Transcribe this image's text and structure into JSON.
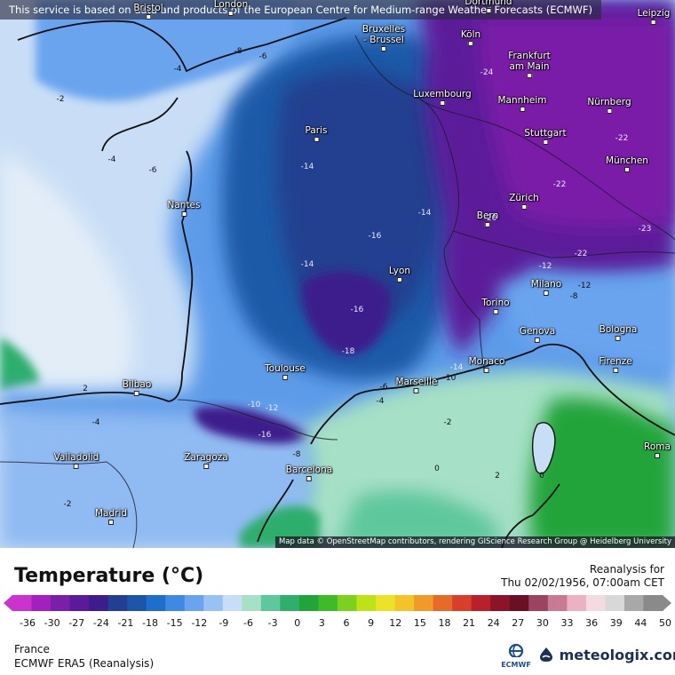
{
  "notice": "This service is based on data and products of the European Centre for Medium-range Weather Forecasts (ECMWF)",
  "attribution": "Map data © OpenStreetMap contributors, rendering GIScience Research Group @ Heidelberg University",
  "legend": {
    "title": "Temperature (°C)",
    "ticks": [
      "-36",
      "-30",
      "-27",
      "-24",
      "-21",
      "-18",
      "-15",
      "-12",
      "-9",
      "-6",
      "-3",
      "0",
      "3",
      "6",
      "9",
      "12",
      "15",
      "18",
      "21",
      "24",
      "27",
      "30",
      "33",
      "36",
      "39",
      "44",
      "50"
    ],
    "colors": [
      "#cc33cc",
      "#a020c0",
      "#7a1fa8",
      "#5b1a9a",
      "#3c1d8c",
      "#22408f",
      "#1d55a8",
      "#1e6ecc",
      "#3f89e3",
      "#6aa4ef",
      "#98c2f5",
      "#c8def7",
      "#a6e0c6",
      "#5fc79c",
      "#2fae6d",
      "#22a43a",
      "#3fbb2a",
      "#7dd01e",
      "#bde318",
      "#ede22a",
      "#f3c428",
      "#f09a2a",
      "#e86a2a",
      "#d83e2a",
      "#b8202a",
      "#8c1428",
      "#6a1024",
      "#9a4462",
      "#c87a92",
      "#eab2c2",
      "#f2dce2",
      "#d8d8d8",
      "#a8a8a8",
      "#8a8a8a"
    ]
  },
  "product": {
    "line1": "Reanalysis for",
    "line2": "Thu 02/02/1956, 07:00am CET"
  },
  "footer": {
    "region": "France",
    "model": "ECMWF ERA5 (Reanalysis)",
    "ecmwf_label": "ECMWF",
    "brand": "meteologix.com"
  },
  "cities": [
    {
      "name": "Bristol",
      "id": "bristol"
    },
    {
      "name": "London",
      "id": "london"
    },
    {
      "name": "Bruxelles - Brussel",
      "id": "brussel",
      "line1": "Bruxelles",
      "line2": "- Brussel"
    },
    {
      "name": "Dortmund",
      "id": "dortmund"
    },
    {
      "name": "Leipzig",
      "id": "leipzig"
    },
    {
      "name": "Köln",
      "id": "koln"
    },
    {
      "name": "Frankfurt am Main",
      "id": "frankfurt",
      "line1": "Frankfurt",
      "line2": "am Main"
    },
    {
      "name": "Luxembourg",
      "id": "luxembourg"
    },
    {
      "name": "Mannheim",
      "id": "mannheim"
    },
    {
      "name": "Nürnberg",
      "id": "nurnberg"
    },
    {
      "name": "Paris",
      "id": "paris"
    },
    {
      "name": "Stuttgart",
      "id": "stuttgart"
    },
    {
      "name": "München",
      "id": "munchen"
    },
    {
      "name": "Nantes",
      "id": "nantes"
    },
    {
      "name": "Zürich",
      "id": "zurich"
    },
    {
      "name": "Bern",
      "id": "bern"
    },
    {
      "name": "Lyon",
      "id": "lyon"
    },
    {
      "name": "Milano",
      "id": "milano"
    },
    {
      "name": "Torino",
      "id": "torino"
    },
    {
      "name": "Genova",
      "id": "genova"
    },
    {
      "name": "Bologna",
      "id": "bologna"
    },
    {
      "name": "Monaco",
      "id": "monaco"
    },
    {
      "name": "Firenze",
      "id": "firenze"
    },
    {
      "name": "Toulouse",
      "id": "toulouse"
    },
    {
      "name": "Marseille",
      "id": "marseille"
    },
    {
      "name": "Bilbao",
      "id": "bilbao"
    },
    {
      "name": "Valladolid",
      "id": "valladolid"
    },
    {
      "name": "Zaragoza",
      "id": "zaragoza"
    },
    {
      "name": "Barcelona",
      "id": "barcelona"
    },
    {
      "name": "Madrid",
      "id": "madrid"
    },
    {
      "name": "Roma",
      "id": "roma"
    }
  ],
  "isotherm_labels": [
    {
      "text": "-2"
    },
    {
      "text": "-4"
    },
    {
      "text": "-8"
    },
    {
      "text": "-6"
    },
    {
      "text": "-4"
    },
    {
      "text": "-6"
    },
    {
      "text": "-14"
    },
    {
      "text": "-14"
    },
    {
      "text": "-16"
    },
    {
      "text": "-14"
    },
    {
      "text": "-16"
    },
    {
      "text": "-18"
    },
    {
      "text": "-14"
    },
    {
      "text": "-10"
    },
    {
      "text": "-6"
    },
    {
      "text": "-4"
    },
    {
      "text": "-2"
    },
    {
      "text": "2"
    },
    {
      "text": "-4"
    },
    {
      "text": "-10"
    },
    {
      "text": "-12"
    },
    {
      "text": "-16"
    },
    {
      "text": "-12"
    },
    {
      "text": "-8"
    },
    {
      "text": "-2"
    },
    {
      "text": "0"
    },
    {
      "text": "2"
    },
    {
      "text": "0"
    },
    {
      "text": "-8"
    },
    {
      "text": "-12"
    },
    {
      "text": "-22"
    },
    {
      "text": "-24"
    },
    {
      "text": "-22"
    },
    {
      "text": "-20"
    },
    {
      "text": "-22"
    },
    {
      "text": "-23"
    }
  ],
  "colors": {
    "ocean_cold": "#c9def6",
    "land_cold": "#3f89e3",
    "deep_cold": "#1e3f88",
    "extreme_cold": "#4b1a8f",
    "mild_green": "#22a43a",
    "sea_green": "#a6e0c6"
  }
}
